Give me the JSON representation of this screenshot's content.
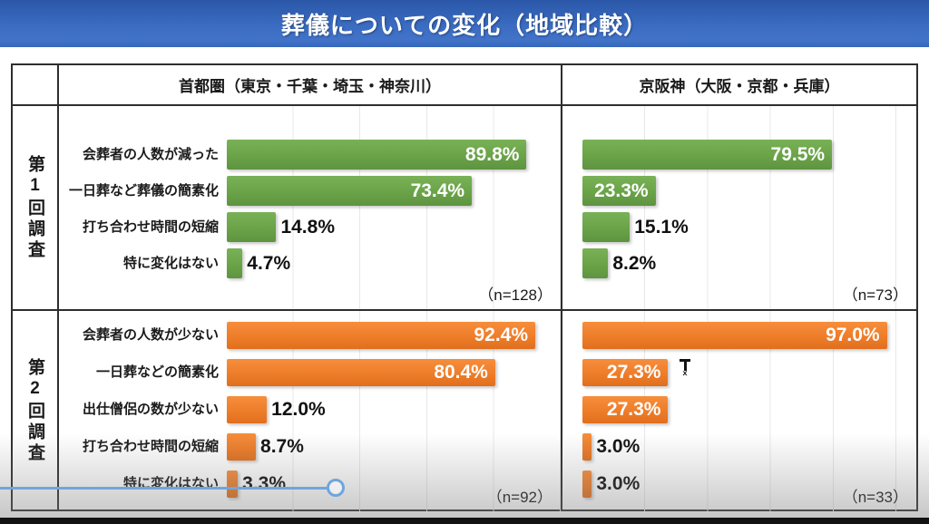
{
  "title": "葬儀についての変化（地域比較）",
  "colors": {
    "title_bar_top": "#2b57a8",
    "title_bar_bottom": "#4273c9",
    "bar_green": "#6aa348",
    "bar_orange": "#ee7d2a",
    "table_border": "#2e2e2e",
    "gridline": "#e8e8e8",
    "annotation_blue": "#6fa5dd"
  },
  "table": {
    "col_headers": [
      "首都圏（東京・千葉・埼玉・神奈川）",
      "京阪神（大阪・京都・兵庫）"
    ],
    "row_headers": [
      "第1回調査",
      "第2回調査"
    ]
  },
  "chart_data": [
    {
      "type": "bar",
      "orientation": "horizontal",
      "group": "第1回調査",
      "region": "首都圏（東京・千葉・埼玉・神奈川）",
      "xlim": [
        0,
        100
      ],
      "grid": "on",
      "bar_color": "#6aa348",
      "categories": [
        "会葬者の人数が減った",
        "一日葬など葬儀の簡素化",
        "打ち合わせ時間の短縮",
        "特に変化はない"
      ],
      "values": [
        89.8,
        73.4,
        14.8,
        4.7
      ],
      "values_display": [
        "89.8%",
        "73.4%",
        "14.8%",
        "4.7%"
      ],
      "n_label": "（n=128）"
    },
    {
      "type": "bar",
      "orientation": "horizontal",
      "group": "第1回調査",
      "region": "京阪神（大阪・京都・兵庫）",
      "xlim": [
        0,
        100
      ],
      "grid": "on",
      "bar_color": "#6aa348",
      "categories": [
        "会葬者の人数が減った",
        "一日葬など葬儀の簡素化",
        "打ち合わせ時間の短縮",
        "特に変化はない"
      ],
      "values": [
        79.5,
        23.3,
        15.1,
        8.2
      ],
      "values_display": [
        "79.5%",
        "23.3%",
        "15.1%",
        "8.2%"
      ],
      "n_label": "（n=73）"
    },
    {
      "type": "bar",
      "orientation": "horizontal",
      "group": "第2回調査",
      "region": "首都圏（東京・千葉・埼玉・神奈川）",
      "xlim": [
        0,
        100
      ],
      "grid": "on",
      "bar_color": "#ee7d2a",
      "categories": [
        "会葬者の人数が少ない",
        "一日葬などの簡素化",
        "出仕僧侶の数が少ない",
        "打ち合わせ時間の短縮",
        "特に変化はない"
      ],
      "values": [
        92.4,
        80.4,
        12.0,
        8.7,
        3.3
      ],
      "values_display": [
        "92.4%",
        "80.4%",
        "12.0%",
        "8.7%",
        "3.3%"
      ],
      "n_label": "（n=92）"
    },
    {
      "type": "bar",
      "orientation": "horizontal",
      "group": "第2回調査",
      "region": "京阪神（大阪・京都・兵庫）",
      "xlim": [
        0,
        100
      ],
      "grid": "on",
      "bar_color": "#ee7d2a",
      "categories": [
        "会葬者の人数が少ない",
        "一日葬などの簡素化",
        "出仕僧侶の数が少ない",
        "打ち合わせ時間の短縮",
        "特に変化はない"
      ],
      "values": [
        97.0,
        27.3,
        27.3,
        3.0,
        3.0
      ],
      "values_display": [
        "97.0%",
        "27.3%",
        "27.3%",
        "3.0%",
        "3.0%"
      ],
      "n_label": "（n=33）"
    }
  ]
}
